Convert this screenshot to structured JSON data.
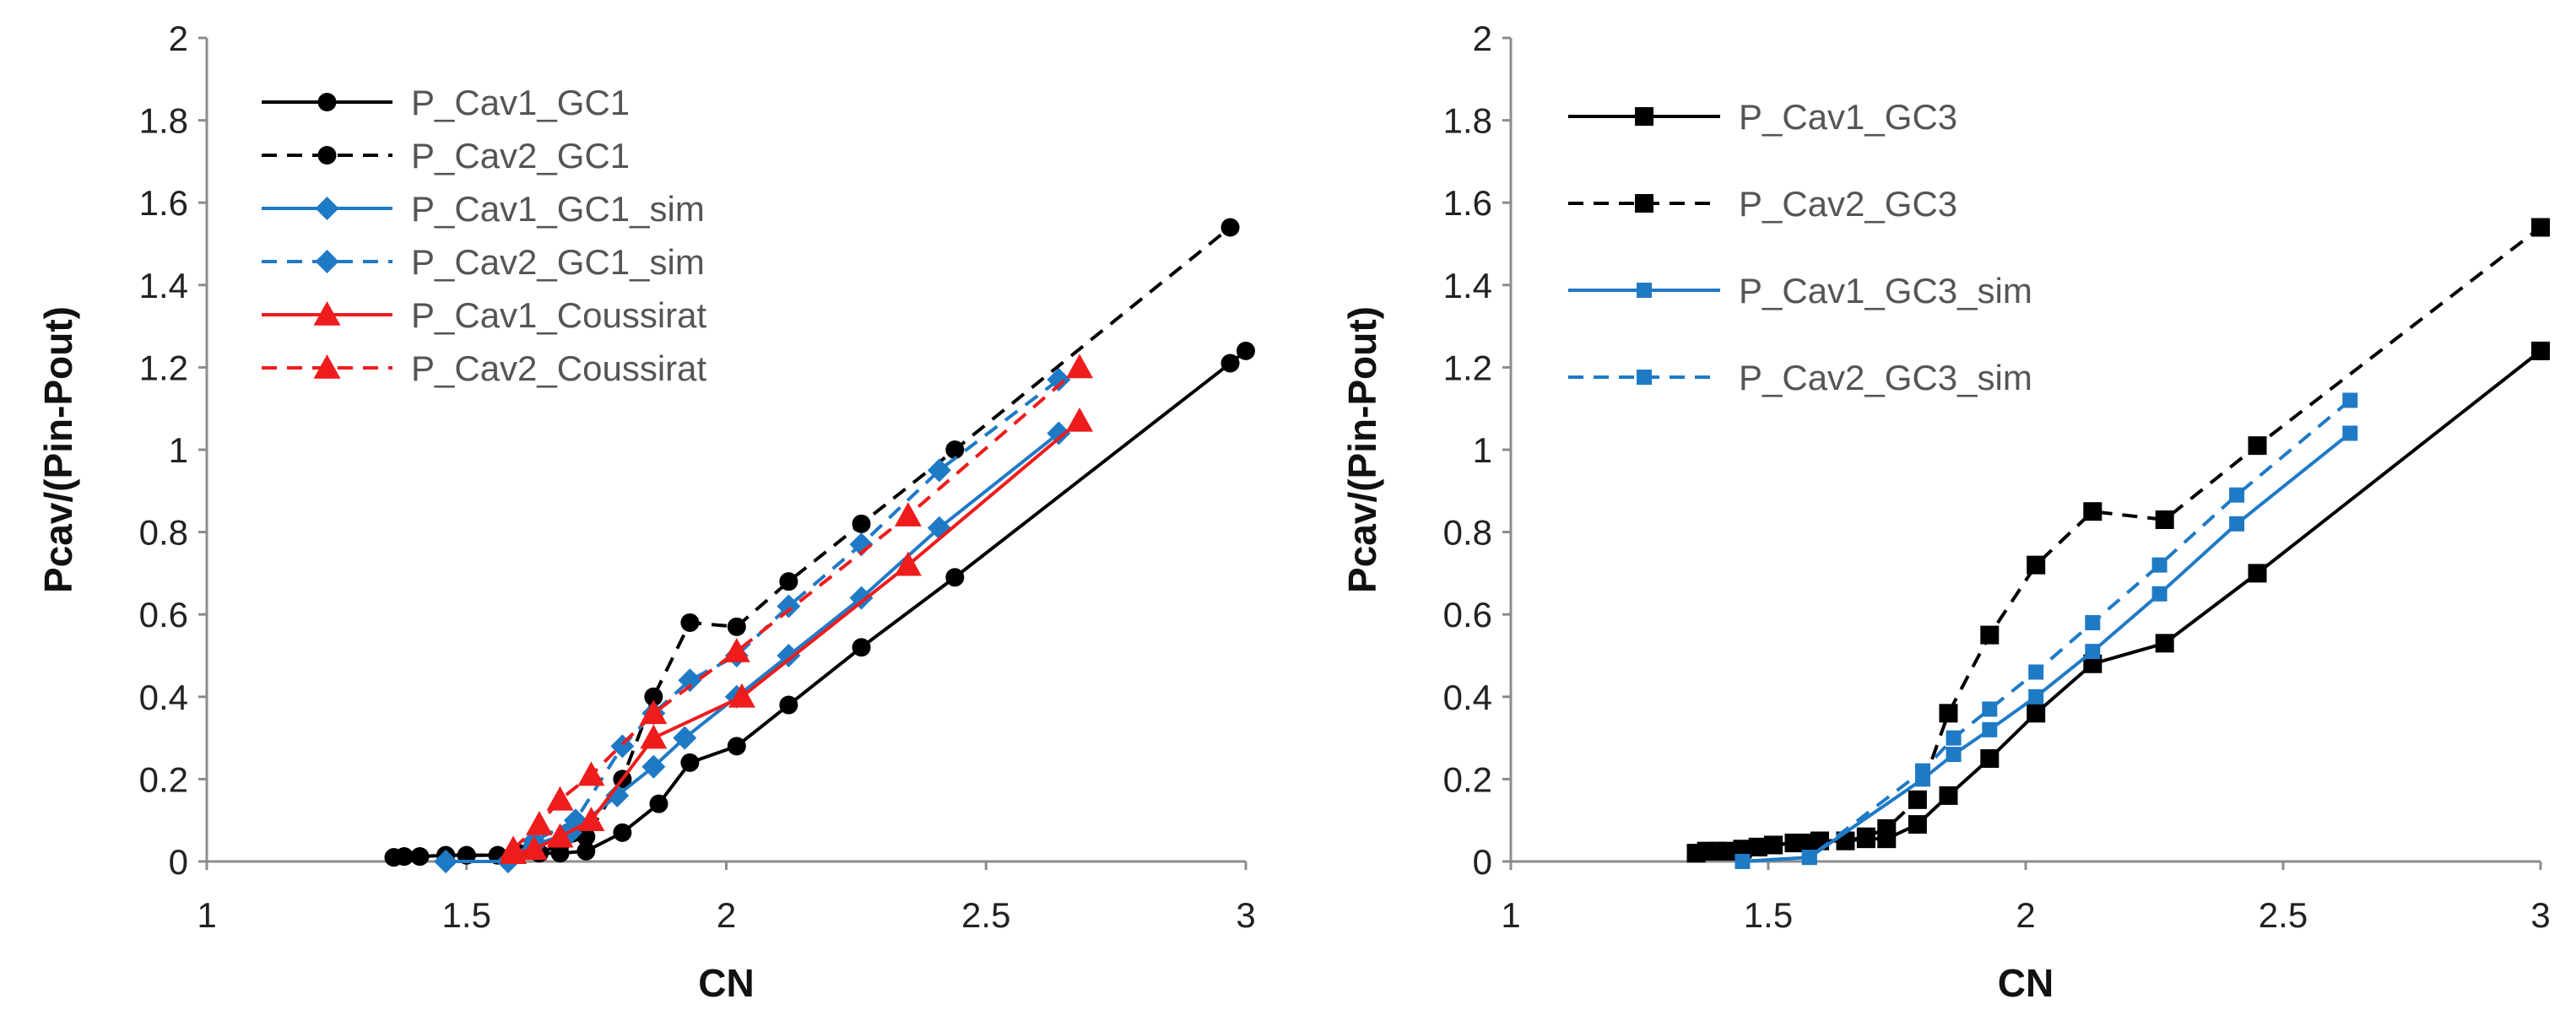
{
  "chart_data": [
    {
      "type": "line",
      "xlabel": "CN",
      "ylabel": "Pcav/(Pin-Pout)",
      "xlim": [
        1,
        3
      ],
      "ylim": [
        0,
        2
      ],
      "xticks": [
        "1",
        "1.5",
        "2",
        "2.5",
        "3"
      ],
      "yticks": [
        "0",
        "0.2",
        "0.4",
        "0.6",
        "0.8",
        "1",
        "1.2",
        "1.4",
        "1.6",
        "1.8",
        "2"
      ],
      "grid": false,
      "legend_position": "top-left",
      "series": [
        {
          "name": "P_Cav1_GC1",
          "color": "#000000",
          "dash": "solid",
          "marker": "circle",
          "x": [
            1.36,
            1.38,
            1.41,
            1.46,
            1.5,
            1.56,
            1.6,
            1.64,
            1.68,
            1.73,
            1.8,
            1.87,
            1.93,
            2.02,
            2.12,
            2.26,
            2.44,
            2.97,
            3.0
          ],
          "y": [
            0.01,
            0.012,
            0.012,
            0.015,
            0.015,
            0.015,
            0.02,
            0.02,
            0.02,
            0.025,
            0.07,
            0.14,
            0.24,
            0.28,
            0.38,
            0.52,
            0.69,
            1.21,
            1.24
          ]
        },
        {
          "name": "P_Cav2_GC1",
          "color": "#000000",
          "dash": "dashed",
          "marker": "circle",
          "x": [
            1.36,
            1.38,
            1.41,
            1.46,
            1.5,
            1.56,
            1.6,
            1.64,
            1.68,
            1.73,
            1.8,
            1.86,
            1.93,
            2.02,
            2.12,
            2.26,
            2.44,
            2.97
          ],
          "y": [
            0.01,
            0.012,
            0.012,
            0.015,
            0.015,
            0.015,
            0.02,
            0.02,
            0.04,
            0.06,
            0.2,
            0.4,
            0.58,
            0.57,
            0.68,
            0.82,
            1.0,
            1.54
          ]
        },
        {
          "name": "P_Cav1_GC1_sim",
          "color": "#1f7ac6",
          "dash": "solid",
          "marker": "diamond",
          "x": [
            1.46,
            1.58,
            1.63,
            1.7,
            1.79,
            1.86,
            1.92,
            2.02,
            2.12,
            2.26,
            2.41,
            2.64
          ],
          "y": [
            0.0,
            0.0,
            0.04,
            0.07,
            0.16,
            0.23,
            0.3,
            0.4,
            0.5,
            0.64,
            0.81,
            1.04
          ]
        },
        {
          "name": "P_Cav2_GC1_sim",
          "color": "#1f7ac6",
          "dash": "dashed",
          "marker": "diamond",
          "x": [
            1.46,
            1.58,
            1.63,
            1.71,
            1.8,
            1.86,
            1.93,
            2.02,
            2.12,
            2.26,
            2.41,
            2.64
          ],
          "y": [
            0.0,
            0.0,
            0.05,
            0.1,
            0.28,
            0.36,
            0.44,
            0.5,
            0.62,
            0.77,
            0.95,
            1.17
          ]
        },
        {
          "name": "P_Cav1_Coussirat",
          "color": "#ee1c1c",
          "dash": "solid",
          "marker": "triangle",
          "x": [
            1.59,
            1.63,
            1.68,
            1.74,
            1.86,
            2.03,
            2.35,
            2.68
          ],
          "y": [
            0.02,
            0.03,
            0.06,
            0.1,
            0.3,
            0.4,
            0.72,
            1.07
          ]
        },
        {
          "name": "P_Cav2_Coussirat",
          "color": "#ee1c1c",
          "dash": "dashed",
          "marker": "triangle",
          "x": [
            1.59,
            1.64,
            1.68,
            1.74,
            1.86,
            2.02,
            2.35,
            2.68
          ],
          "y": [
            0.03,
            0.09,
            0.15,
            0.21,
            0.36,
            0.51,
            0.84,
            1.2
          ]
        }
      ]
    },
    {
      "type": "line",
      "xlabel": "CN",
      "ylabel": "Pcav/(Pin-Pout)",
      "xlim": [
        1,
        3
      ],
      "ylim": [
        0,
        2
      ],
      "xticks": [
        "1",
        "1.5",
        "2",
        "2.5",
        "3"
      ],
      "yticks": [
        "0",
        "0.2",
        "0.4",
        "0.6",
        "0.8",
        "1",
        "1.2",
        "1.4",
        "1.6",
        "1.8",
        "2"
      ],
      "grid": false,
      "legend_position": "top-left",
      "series": [
        {
          "name": "P_Cav1_GC3",
          "color": "#000000",
          "dash": "solid",
          "marker": "square",
          "x": [
            1.36,
            1.38,
            1.4,
            1.42,
            1.45,
            1.48,
            1.51,
            1.55,
            1.58,
            1.6,
            1.65,
            1.69,
            1.73,
            1.79,
            1.85,
            1.93,
            2.02,
            2.13,
            2.27,
            2.45,
            3.0
          ],
          "y": [
            0.02,
            0.025,
            0.025,
            0.025,
            0.03,
            0.035,
            0.04,
            0.045,
            0.045,
            0.05,
            0.05,
            0.055,
            0.055,
            0.09,
            0.16,
            0.25,
            0.36,
            0.48,
            0.53,
            0.7,
            1.24
          ]
        },
        {
          "name": "P_Cav2_GC3",
          "color": "#000000",
          "dash": "dashed",
          "marker": "square",
          "x": [
            1.36,
            1.38,
            1.4,
            1.42,
            1.45,
            1.48,
            1.51,
            1.55,
            1.58,
            1.6,
            1.65,
            1.69,
            1.73,
            1.79,
            1.85,
            1.93,
            2.02,
            2.13,
            2.27,
            2.45,
            3.0
          ],
          "y": [
            0.02,
            0.025,
            0.025,
            0.025,
            0.03,
            0.035,
            0.04,
            0.045,
            0.045,
            0.05,
            0.05,
            0.06,
            0.08,
            0.15,
            0.36,
            0.55,
            0.72,
            0.85,
            0.83,
            1.01,
            1.54
          ]
        },
        {
          "name": "P_Cav1_GC3_sim",
          "color": "#1f7ac6",
          "dash": "solid",
          "marker": "x-square",
          "x": [
            1.45,
            1.58,
            1.8,
            1.86,
            1.93,
            2.02,
            2.13,
            2.26,
            2.41,
            2.63
          ],
          "y": [
            0.0,
            0.01,
            0.2,
            0.26,
            0.32,
            0.4,
            0.51,
            0.65,
            0.82,
            1.04
          ]
        },
        {
          "name": "P_Cav2_GC3_sim",
          "color": "#1f7ac6",
          "dash": "dashed",
          "marker": "x-square",
          "x": [
            1.45,
            1.58,
            1.8,
            1.86,
            1.93,
            2.02,
            2.13,
            2.26,
            2.41,
            2.63
          ],
          "y": [
            0.0,
            0.01,
            0.22,
            0.3,
            0.37,
            0.46,
            0.58,
            0.72,
            0.89,
            1.12
          ]
        }
      ]
    }
  ]
}
